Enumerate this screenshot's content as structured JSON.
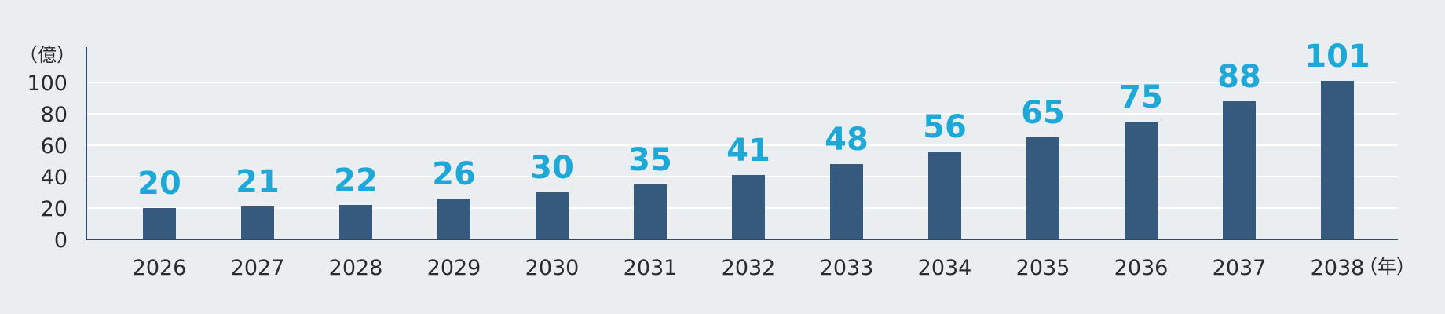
{
  "chart_data": {
    "type": "bar",
    "categories": [
      "2026",
      "2027",
      "2028",
      "2029",
      "2030",
      "2031",
      "2032",
      "2033",
      "2034",
      "2035",
      "2036",
      "2037",
      "2038"
    ],
    "values": [
      20,
      21,
      22,
      26,
      30,
      35,
      41,
      48,
      56,
      65,
      75,
      88,
      101
    ],
    "y_unit": "（億）",
    "x_unit": "（年）",
    "y_ticks": [
      0,
      20,
      40,
      60,
      80,
      100
    ],
    "ylim": [
      0,
      120
    ],
    "grid": true,
    "legend": "none",
    "bar_color": "#355a7e",
    "label_color": "#1da8d8",
    "axis_color": "#2f4a6b",
    "background": "#ebeef1"
  }
}
